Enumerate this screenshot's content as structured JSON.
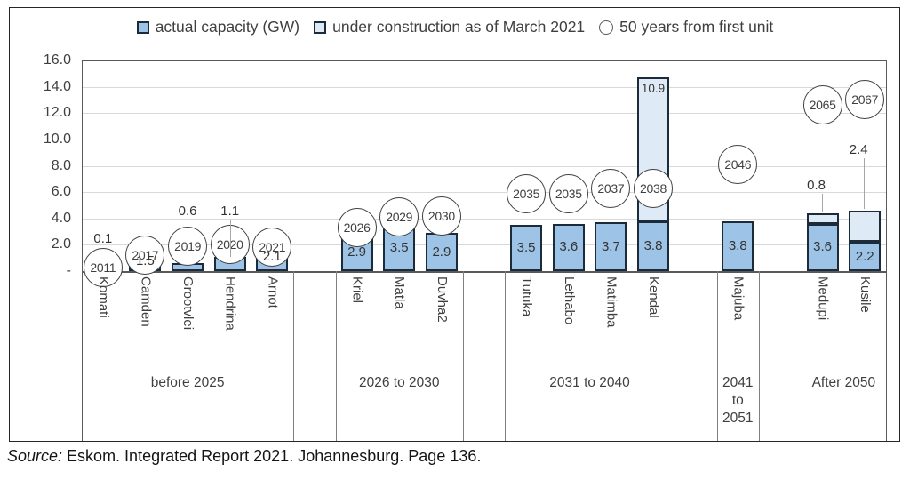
{
  "colors": {
    "actual_fill": "#9DC3E6",
    "under_construction_fill": "#DEEBF7",
    "bar_border": "#1C2B3A",
    "gridline": "#D9D9D9",
    "plot_border": "#595959",
    "divider": "#7F7F7F",
    "circle_stroke": "#3F3F3F",
    "label_text": "#3F3F3F",
    "leader_line": "#A6A6A6"
  },
  "legend": {
    "items": [
      {
        "label": "actual capacity (GW)",
        "marker": "actual-square"
      },
      {
        "label": "under construction as of March 2021",
        "marker": "construction-square"
      },
      {
        "label": "50 years from first unit",
        "marker": "open-circle"
      }
    ]
  },
  "source_note": {
    "prefix": "Source:",
    "text": "Eskom. Integrated Report 2021. Johannesburg. Page 136."
  },
  "chart_data": {
    "type": "bar",
    "stacked": true,
    "title": "",
    "xlabel": "",
    "ylabel": "",
    "ylim": [
      0,
      16
    ],
    "grid": true,
    "legend_position": "top",
    "series_names": [
      "actual capacity (GW)",
      "under construction as of March 2021",
      "50 years from first unit"
    ],
    "y_axis": {
      "ticks": [
        "16.0",
        "14.0",
        "12.0",
        "10.0",
        "8.0",
        "6.0",
        "4.0",
        "2.0",
        "-"
      ],
      "tick_values": [
        16,
        14,
        12,
        10,
        8,
        6,
        4,
        2,
        0
      ]
    },
    "groups": [
      {
        "label": "before 2025",
        "stations": [
          {
            "name": "Komati",
            "actual": 0.1,
            "under_construction": 0,
            "actual_label": "0.1",
            "label_placement": "above",
            "year_50_from_first_unit": "2011",
            "marker_y_gw": 0.3
          },
          {
            "name": "Camden",
            "actual": 1.5,
            "under_construction": 0,
            "actual_label": "1.5",
            "label_placement": "inside",
            "year_50_from_first_unit": "2017",
            "marker_y_gw": 1.2
          },
          {
            "name": "Grootvlei",
            "actual": 0.6,
            "under_construction": 0,
            "actual_label": "0.6",
            "label_placement": "above_leader",
            "year_50_from_first_unit": "2019",
            "marker_y_gw": 1.9
          },
          {
            "name": "Hendrina",
            "actual": 1.1,
            "under_construction": 0,
            "actual_label": "1.1",
            "label_placement": "above_leader",
            "year_50_from_first_unit": "2020",
            "marker_y_gw": 2.0
          },
          {
            "name": "Arnot",
            "actual": 2.1,
            "under_construction": 0,
            "actual_label": "2.1",
            "label_placement": "inside",
            "year_50_from_first_unit": "2021",
            "marker_y_gw": 1.85
          }
        ]
      },
      {
        "label": "2026 to 2030",
        "stations": [
          {
            "name": "Kriel",
            "actual": 2.9,
            "under_construction": 0,
            "actual_label": "2.9",
            "label_placement": "inside",
            "year_50_from_first_unit": "2026",
            "marker_y_gw": 3.3
          },
          {
            "name": "Matla",
            "actual": 3.5,
            "under_construction": 0,
            "actual_label": "3.5",
            "label_placement": "inside",
            "year_50_from_first_unit": "2029",
            "marker_y_gw": 4.1
          },
          {
            "name": "Duvha2",
            "actual": 2.9,
            "under_construction": 0,
            "actual_label": "2.9",
            "label_placement": "inside",
            "year_50_from_first_unit": "2030",
            "marker_y_gw": 4.2
          }
        ]
      },
      {
        "label": "2031 to 2040",
        "stations": [
          {
            "name": "Tutuka",
            "actual": 3.5,
            "under_construction": 0,
            "actual_label": "3.5",
            "label_placement": "inside",
            "year_50_from_first_unit": "2035",
            "marker_y_gw": 5.9
          },
          {
            "name": "Lethabo",
            "actual": 3.6,
            "under_construction": 0,
            "actual_label": "3.6",
            "label_placement": "inside",
            "year_50_from_first_unit": "2035",
            "marker_y_gw": 5.9
          },
          {
            "name": "Matimba",
            "actual": 3.7,
            "under_construction": 0,
            "actual_label": "3.7",
            "label_placement": "inside",
            "year_50_from_first_unit": "2037",
            "marker_y_gw": 6.25
          },
          {
            "name": "Kendal",
            "actual": 3.8,
            "under_construction": 10.9,
            "actual_label": "3.8",
            "label_placement": "inside",
            "uc_label": "10.9",
            "uc_label_placement": "inside_top",
            "year_50_from_first_unit": "2038",
            "marker_y_gw": 6.3
          }
        ]
      },
      {
        "label": "2041 to 2051",
        "stations": [
          {
            "name": "Majuba",
            "actual": 3.8,
            "under_construction": 0,
            "actual_label": "3.8",
            "label_placement": "inside",
            "year_50_from_first_unit": "2046",
            "marker_y_gw": 8.1
          }
        ]
      },
      {
        "label": "After 2050",
        "stations": [
          {
            "name": "Medupi",
            "actual": 3.6,
            "under_construction": 0.8,
            "actual_label": "3.6",
            "label_placement": "inside",
            "uc_label": "0.8",
            "uc_label_placement": "above_leader",
            "uc_label_rise": 31,
            "year_50_from_first_unit": "2065",
            "marker_y_gw": 12.6
          },
          {
            "name": "Kusile",
            "actual": 2.2,
            "under_construction": 2.4,
            "actual_label": "2.2",
            "label_placement": "inside",
            "uc_label": "2.4",
            "uc_label_placement": "above_leader",
            "uc_label_rise": 68,
            "year_50_from_first_unit": "2067",
            "marker_y_gw": 13.0
          }
        ]
      }
    ]
  }
}
